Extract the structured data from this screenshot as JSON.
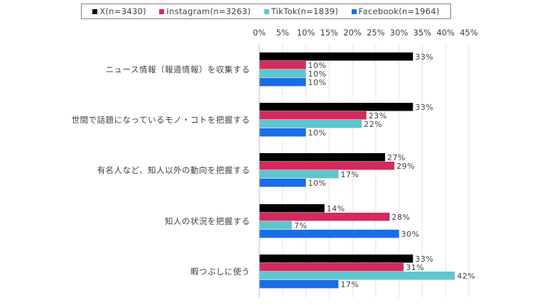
{
  "chart_data": {
    "type": "bar",
    "orientation": "horizontal",
    "categories": [
      "ニュース情報（報道情報）を収集する",
      "世間で話題になっているモノ・コトを把握する",
      "有名人など、知人以外の動向を把握する",
      "知人の状況を把握する",
      "暇つぶしに使う"
    ],
    "series": [
      {
        "name": "X(n=3430)",
        "color": "#000000",
        "values": [
          33,
          33,
          27,
          14,
          33
        ]
      },
      {
        "name": "Instagram(n=3263)",
        "color": "#d42a5c",
        "values": [
          10,
          23,
          29,
          28,
          31
        ]
      },
      {
        "name": "TikTok(n=1839)",
        "color": "#5ec5cf",
        "values": [
          10,
          22,
          17,
          7,
          42
        ]
      },
      {
        "name": "Facebook(n=1964)",
        "color": "#1a6de8",
        "values": [
          10,
          10,
          10,
          30,
          17
        ]
      }
    ],
    "value_suffix": "%",
    "xlim": [
      0,
      45
    ],
    "ticks": [
      0,
      5,
      10,
      15,
      20,
      25,
      30,
      35,
      40,
      45
    ],
    "tick_labels": [
      "0%",
      "5%",
      "10%",
      "15%",
      "20%",
      "25%",
      "30%",
      "35%",
      "40%",
      "45%"
    ],
    "x_axis_position": "top",
    "legend_position": "top",
    "grid": true
  }
}
